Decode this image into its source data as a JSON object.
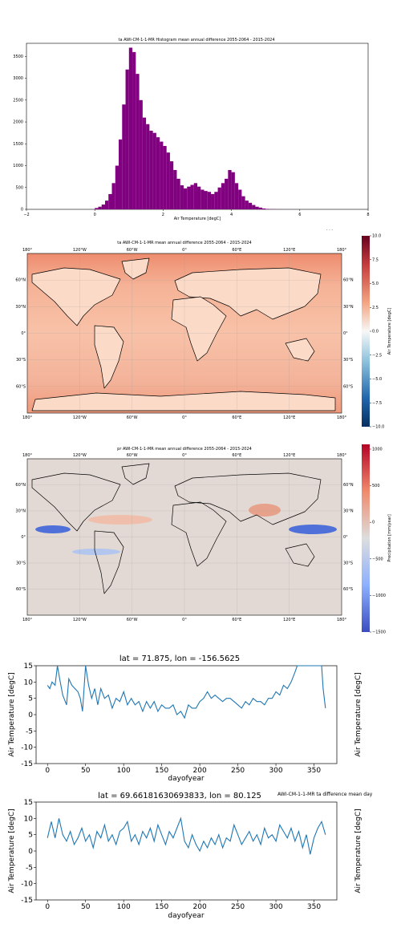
{
  "figures": {
    "histogram": {
      "title": "ta AWI-CM-1-1-MR Histogram mean annual difference 2055-2064 - 2015-2024",
      "xlabel": "Air Temperature [degC]",
      "xticks": [
        "−2",
        "0",
        "2",
        "4",
        "6",
        "8"
      ],
      "yticks": [
        "0",
        "500",
        "1000",
        "1500",
        "2000",
        "2500",
        "3000",
        "3500"
      ],
      "corner_mark": "· · ·"
    },
    "ta_map": {
      "title": "ta AWI-CM-1-1-MR mean annual difference 2055-2064 - 2015-2024",
      "colorbar_label": "Air Temperature [degC]",
      "colorbar_ticks": [
        "10.0",
        "7.5",
        "5.0",
        "2.5",
        "0.0",
        "−2.5",
        "−5.0",
        "−7.5",
        "−10.0"
      ],
      "lon_ticks": [
        "180°",
        "120°W",
        "60°W",
        "0°",
        "60°E",
        "120°E",
        "180°"
      ],
      "lat_ticks": [
        "60°N",
        "30°N",
        "0°",
        "30°S",
        "60°S"
      ]
    },
    "pr_map": {
      "title": "pr AWI-CM-1-1-MR mean annual difference 2055-2064 - 2015-2024",
      "colorbar_label": "Precipitation [mm/year]",
      "colorbar_ticks": [
        "1000",
        "500",
        "0",
        "−500",
        "−1000",
        "−1500"
      ],
      "lon_ticks": [
        "180°",
        "120°W",
        "60°W",
        "0°",
        "60°E",
        "120°E",
        "180°"
      ],
      "lat_ticks": [
        "60°N",
        "30°N",
        "0°",
        "30°S",
        "60°S"
      ]
    },
    "ts1": {
      "title": "lat = 71.875, lon = -156.5625",
      "xlabel": "dayofyear",
      "ylabel": "Air Temperature [degC]",
      "right_ylabel": "Air Temperature [degC]"
    },
    "ts2": {
      "title": "lat = 69.66181630693833, lon = 80.125",
      "overlap_title": "AWI-CM-1-1-MR ta difference mean day",
      "xlabel": "dayofyear",
      "ylabel": "Air Temperature [degC]",
      "right_ylabel": "Air Temperature [degC]"
    }
  },
  "colors": {
    "histogram_bars": "#800080",
    "line": "#1f77b4",
    "land_outline": "#000000",
    "ta_warm": "#f2a27f",
    "pr_neutral": "#dcdcdc"
  },
  "chart_data": [
    {
      "type": "bar",
      "title": "ta AWI-CM-1-1-MR Histogram mean annual difference 2055-2064 - 2015-2024",
      "xlabel": "Air Temperature [degC]",
      "ylabel": "",
      "xlim": [
        -2,
        8
      ],
      "ylim": [
        0,
        3800
      ],
      "x": [
        0.0,
        0.1,
        0.2,
        0.3,
        0.4,
        0.5,
        0.6,
        0.7,
        0.8,
        0.9,
        1.0,
        1.1,
        1.2,
        1.3,
        1.4,
        1.5,
        1.6,
        1.7,
        1.8,
        1.9,
        2.0,
        2.1,
        2.2,
        2.3,
        2.4,
        2.5,
        2.6,
        2.7,
        2.8,
        2.9,
        3.0,
        3.1,
        3.2,
        3.3,
        3.4,
        3.5,
        3.6,
        3.7,
        3.8,
        3.9,
        4.0,
        4.1,
        4.2,
        4.3,
        4.4,
        4.5,
        4.6,
        4.7,
        4.8,
        4.9,
        5.0,
        5.1,
        5.2,
        5.3,
        5.4,
        5.5,
        5.6,
        5.7
      ],
      "values": [
        30,
        60,
        110,
        200,
        350,
        600,
        1000,
        1600,
        2400,
        3200,
        3700,
        3600,
        3100,
        2500,
        2100,
        1950,
        1800,
        1750,
        1650,
        1550,
        1450,
        1300,
        1100,
        900,
        700,
        550,
        480,
        520,
        560,
        600,
        520,
        450,
        420,
        400,
        350,
        400,
        500,
        600,
        700,
        900,
        850,
        600,
        450,
        300,
        200,
        150,
        100,
        60,
        40,
        20,
        10,
        5,
        3,
        2,
        2,
        1,
        1,
        1
      ]
    },
    {
      "type": "line",
      "title": "lat = 71.875, lon = -156.5625",
      "xlabel": "dayofyear",
      "ylabel": "Air Temperature [degC]",
      "xlim": [
        -15,
        380
      ],
      "ylim": [
        -15,
        15
      ],
      "xticks": [
        0,
        50,
        100,
        150,
        200,
        250,
        300,
        350
      ],
      "yticks": [
        -15,
        -10,
        -5,
        0,
        5,
        10,
        15
      ],
      "x": [
        0,
        3,
        6,
        10,
        13,
        16,
        20,
        25,
        28,
        32,
        36,
        40,
        43,
        46,
        50,
        54,
        58,
        62,
        66,
        70,
        75,
        80,
        85,
        90,
        95,
        100,
        105,
        110,
        115,
        120,
        125,
        130,
        135,
        140,
        145,
        150,
        155,
        160,
        165,
        170,
        175,
        180,
        185,
        190,
        195,
        200,
        205,
        210,
        215,
        220,
        225,
        230,
        235,
        240,
        245,
        250,
        255,
        260,
        265,
        270,
        275,
        280,
        285,
        290,
        295,
        300,
        305,
        310,
        315,
        320,
        325,
        328,
        360,
        362,
        365
      ],
      "series": [
        {
          "values": [
            9,
            8,
            10,
            9,
            15,
            11,
            6,
            3,
            11,
            9,
            8,
            7,
            5,
            1,
            16,
            9,
            5,
            8,
            3,
            8,
            5,
            6,
            2,
            5,
            4,
            7,
            3,
            5,
            3,
            4,
            1,
            4,
            2,
            4,
            1,
            3,
            2,
            2,
            3,
            0,
            1,
            -1,
            3,
            2,
            2,
            4,
            5,
            7,
            5,
            6,
            5,
            4,
            5,
            5,
            4,
            3,
            2,
            4,
            3,
            5,
            4,
            4,
            3,
            5,
            5,
            7,
            6,
            9,
            8,
            10,
            13,
            15,
            15,
            8,
            2
          ]
        }
      ]
    },
    {
      "type": "line",
      "title": "lat = 69.66181630693833, lon = 80.125",
      "xlabel": "dayofyear",
      "ylabel": "Air Temperature [degC]",
      "xlim": [
        -15,
        380
      ],
      "ylim": [
        -15,
        15
      ],
      "xticks": [
        0,
        50,
        100,
        150,
        200,
        250,
        300,
        350
      ],
      "yticks": [
        -15,
        -10,
        -5,
        0,
        5,
        10,
        15
      ],
      "x": [
        0,
        5,
        10,
        15,
        20,
        25,
        30,
        35,
        40,
        45,
        50,
        55,
        60,
        65,
        70,
        75,
        80,
        85,
        90,
        95,
        100,
        105,
        110,
        115,
        120,
        125,
        130,
        135,
        140,
        145,
        150,
        155,
        160,
        165,
        170,
        175,
        180,
        185,
        190,
        195,
        200,
        205,
        210,
        215,
        220,
        225,
        230,
        235,
        240,
        245,
        250,
        255,
        260,
        265,
        270,
        275,
        280,
        285,
        290,
        295,
        300,
        305,
        310,
        315,
        320,
        325,
        330,
        335,
        340,
        345,
        350,
        355,
        360,
        365
      ],
      "series": [
        {
          "values": [
            4,
            9,
            4,
            10,
            5,
            3,
            6,
            2,
            4,
            7,
            3,
            5,
            1,
            6,
            4,
            8,
            3,
            5,
            2,
            6,
            7,
            9,
            3,
            5,
            2,
            6,
            4,
            7,
            3,
            8,
            5,
            2,
            6,
            4,
            7,
            10,
            3,
            1,
            5,
            2,
            0,
            3,
            1,
            4,
            2,
            5,
            1,
            4,
            3,
            8,
            5,
            2,
            4,
            6,
            3,
            5,
            2,
            7,
            4,
            5,
            3,
            8,
            6,
            4,
            7,
            3,
            6,
            1,
            5,
            -1,
            4,
            7,
            9,
            5
          ]
        }
      ]
    }
  ]
}
